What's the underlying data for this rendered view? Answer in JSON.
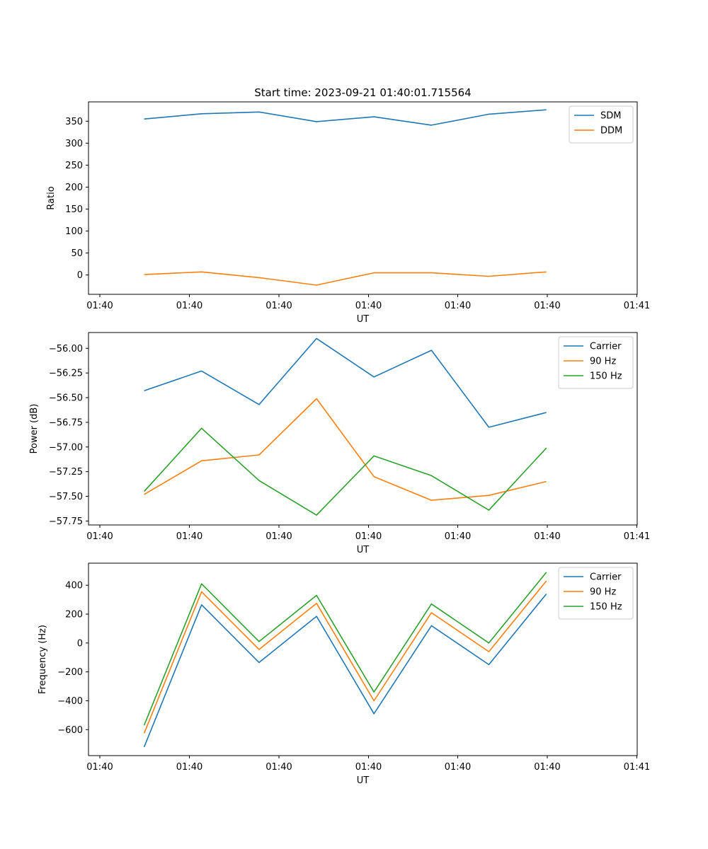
{
  "title": "Start time: 2023-09-21 01:40:01.715564",
  "chart_data": [
    {
      "type": "line",
      "xlabel": "UT",
      "ylabel": "Ratio",
      "xtick_labels": [
        "01:40",
        "01:40",
        "01:40",
        "01:40",
        "01:40",
        "01:40",
        "01:41"
      ],
      "ylim": [
        -44,
        394
      ],
      "yticks": [
        0,
        50,
        100,
        150,
        200,
        250,
        300,
        350
      ],
      "yticklabels": [
        "0",
        "50",
        "100",
        "150",
        "200",
        "250",
        "300",
        "350"
      ],
      "legend": "top-right",
      "series": [
        {
          "name": "SDM",
          "color": "#1f77b4",
          "values": [
            355,
            367,
            371,
            349,
            360,
            341,
            366,
            376
          ]
        },
        {
          "name": "DDM",
          "color": "#ff7f0e",
          "values": [
            1,
            7,
            -6,
            -23,
            5,
            5,
            -3,
            7
          ]
        }
      ]
    },
    {
      "type": "line",
      "xlabel": "UT",
      "ylabel": "Power (dB)",
      "xtick_labels": [
        "01:40",
        "01:40",
        "01:40",
        "01:40",
        "01:40",
        "01:40",
        "01:41"
      ],
      "ylim": [
        -57.79,
        -55.84
      ],
      "yticks": [
        -57.75,
        -57.5,
        -57.25,
        -57.0,
        -56.75,
        -56.5,
        -56.25,
        -56.0
      ],
      "yticklabels": [
        "−57.75",
        "−57.50",
        "−57.25",
        "−57.00",
        "−56.75",
        "−56.50",
        "−56.25",
        "−56.00"
      ],
      "legend": "top-right",
      "series": [
        {
          "name": "Carrier",
          "color": "#1f77b4",
          "values": [
            -56.43,
            -56.23,
            -56.57,
            -55.9,
            -56.29,
            -56.02,
            -56.8,
            -56.65
          ]
        },
        {
          "name": "90 Hz",
          "color": "#ff7f0e",
          "values": [
            -57.48,
            -57.14,
            -57.08,
            -56.51,
            -57.3,
            -57.54,
            -57.49,
            -57.35
          ]
        },
        {
          "name": "150 Hz",
          "color": "#2ca02c",
          "values": [
            -57.45,
            -56.81,
            -57.34,
            -57.69,
            -57.09,
            -57.29,
            -57.64,
            -57.01
          ]
        }
      ]
    },
    {
      "type": "line",
      "xlabel": "UT",
      "ylabel": "Frequency (Hz)",
      "xtick_labels": [
        "01:40",
        "01:40",
        "01:40",
        "01:40",
        "01:40",
        "01:40",
        "01:41"
      ],
      "ylim": [
        -780,
        553
      ],
      "yticks": [
        -600,
        -400,
        -200,
        0,
        200,
        400
      ],
      "yticklabels": [
        "−600",
        "−400",
        "−200",
        "0",
        "200",
        "400"
      ],
      "legend": "top-right",
      "series": [
        {
          "name": "Carrier",
          "color": "#1f77b4",
          "values": [
            -720,
            265,
            -135,
            185,
            -490,
            120,
            -150,
            340
          ]
        },
        {
          "name": "90 Hz",
          "color": "#ff7f0e",
          "values": [
            -625,
            355,
            -45,
            275,
            -400,
            210,
            -60,
            430
          ]
        },
        {
          "name": "150 Hz",
          "color": "#2ca02c",
          "values": [
            -570,
            410,
            10,
            330,
            -340,
            270,
            0,
            490
          ]
        }
      ]
    }
  ]
}
